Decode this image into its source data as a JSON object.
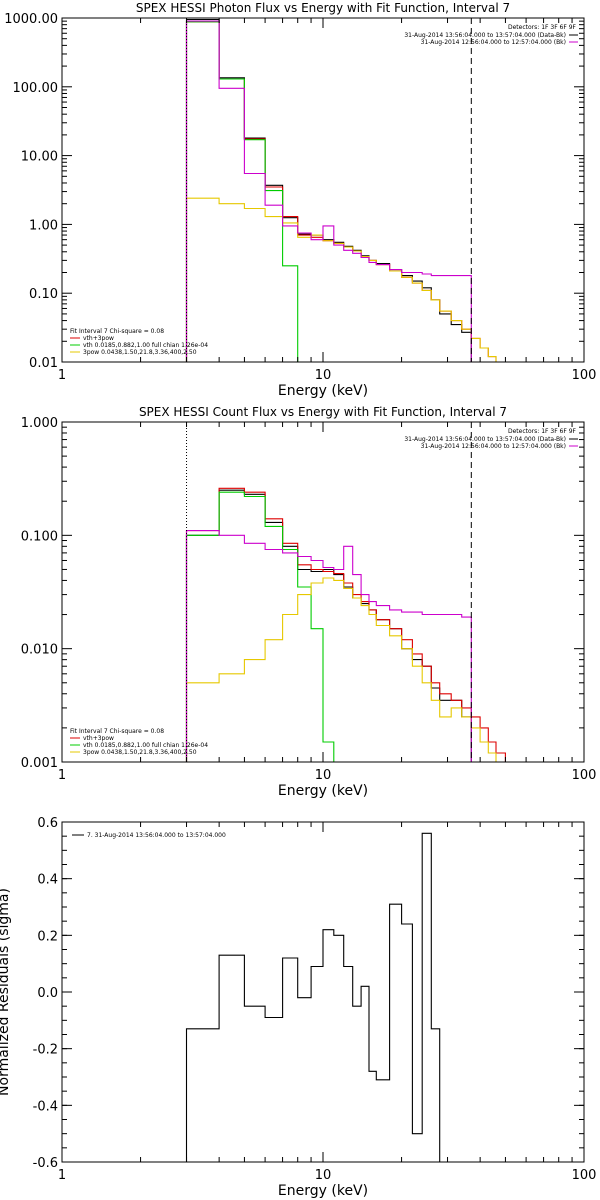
{
  "colors": {
    "data": "#000000",
    "total": "#dd0000",
    "vth": "#00cc00",
    "powerlaw": "#e6c800",
    "background": "#cc00cc",
    "axes": "#000000"
  },
  "chart_data": [
    {
      "type": "line",
      "step": true,
      "title": "SPEX HESSI Photon Flux vs Energy with Fit Function, Interval 7",
      "xlabel": "Energy (keV)",
      "ylabel": "",
      "xscale": "log",
      "yscale": "log",
      "xlim": [
        1,
        100
      ],
      "ylim": [
        0.01,
        1000
      ],
      "x_ticks": [
        {
          "value": 1,
          "label": "1"
        },
        {
          "value": 10,
          "label": "10"
        },
        {
          "value": 100,
          "label": "100"
        }
      ],
      "y_ticks": [
        {
          "value": 1000,
          "label": "1000.00"
        },
        {
          "value": 100,
          "label": "100.00"
        },
        {
          "value": 10,
          "label": "10.00"
        },
        {
          "value": 1,
          "label": "1.00"
        },
        {
          "value": 0.1,
          "label": "0.10"
        },
        {
          "value": 0.01,
          "label": "0.01"
        }
      ],
      "bin_edges": [
        3,
        4,
        5,
        6,
        7,
        8,
        9,
        10,
        11,
        12,
        13,
        14,
        15,
        16,
        18,
        20,
        22,
        24,
        26,
        28,
        31,
        34,
        37,
        40,
        43,
        46,
        50
      ],
      "series": [
        {
          "name": "",
          "color_key": "data",
          "values": [
            950,
            135,
            18,
            3.7,
            1.25,
            0.72,
            0.7,
            0.6,
            0.55,
            0.48,
            0.42,
            0.35,
            0.3,
            0.27,
            0.22,
            0.18,
            0.15,
            0.12,
            0.08,
            0.05,
            0.035,
            0.027,
            null,
            null,
            null,
            null
          ]
        },
        {
          "name": "vth+3pow",
          "color_key": "total",
          "values": [
            880,
            130,
            17.5,
            3.5,
            1.3,
            0.7,
            0.65,
            0.58,
            0.53,
            0.47,
            0.41,
            0.34,
            0.3,
            0.26,
            0.21,
            0.17,
            0.14,
            0.11,
            0.08,
            0.055,
            0.04,
            0.03,
            0.022,
            0.016,
            0.012,
            0.01
          ]
        },
        {
          "name": "vth 0.0185,0.882,1.00  full chian 1.26e-04",
          "color_key": "vth",
          "values": [
            880,
            130,
            17,
            3.1,
            0.25,
            0.009,
            null,
            null,
            null,
            null,
            null,
            null,
            null,
            null,
            null,
            null,
            null,
            null,
            null,
            null,
            null,
            null,
            null,
            null,
            null,
            null
          ]
        },
        {
          "name": "3pow 0.0438,1.50,21.8,3.36,400,2.50",
          "color_key": "powerlaw",
          "values": [
            2.4,
            2.0,
            1.7,
            1.3,
            1.05,
            0.65,
            0.7,
            0.58,
            0.53,
            0.47,
            0.41,
            0.34,
            0.3,
            0.26,
            0.21,
            0.17,
            0.14,
            0.11,
            0.08,
            0.055,
            0.04,
            0.03,
            0.022,
            0.016,
            0.012,
            0.01
          ]
        },
        {
          "name": "",
          "color_key": "background",
          "values": [
            900,
            95,
            5.5,
            1.9,
            0.95,
            0.75,
            0.6,
            0.95,
            0.5,
            0.42,
            0.38,
            0.33,
            0.28,
            0.26,
            0.22,
            0.2,
            0.2,
            0.19,
            0.18,
            0.18,
            0.18,
            0.18,
            null,
            null,
            null,
            null
          ]
        }
      ],
      "legend_title": "Detectors: 1F 3F 6F 9F",
      "legend_entries": [
        {
          "label": "31-Aug-2014 13:56:04.000 to 13:57:04.000 (Data-Bk)",
          "color_key": "data"
        },
        {
          "label": "31-Aug-2014 12:56:04.000 to 12:57:04.000 (Bk)",
          "color_key": "background"
        }
      ],
      "fit_header": "Fit Interval 7   Chi-square = 0.08",
      "fit_legend": [
        {
          "label": "vth+3pow",
          "color_key": "total"
        },
        {
          "label": "vth 0.0185,0.882,1.00  full chian 1.26e-04",
          "color_key": "vth"
        },
        {
          "label": "3pow 0.0438,1.50,21.8,3.36,400,2.50",
          "color_key": "powerlaw"
        }
      ],
      "vlines": [
        {
          "x": 3,
          "style": "dotted"
        },
        {
          "x": 37,
          "style": "dashed"
        }
      ]
    },
    {
      "type": "line",
      "step": true,
      "title": "SPEX HESSI Count Flux vs Energy with Fit Function, Interval 7",
      "xlabel": "Energy (keV)",
      "ylabel": "",
      "xscale": "log",
      "yscale": "log",
      "xlim": [
        1,
        100
      ],
      "ylim": [
        0.001,
        1
      ],
      "x_ticks": [
        {
          "value": 1,
          "label": "1"
        },
        {
          "value": 10,
          "label": "10"
        },
        {
          "value": 100,
          "label": "100"
        }
      ],
      "y_ticks": [
        {
          "value": 1,
          "label": "1.000"
        },
        {
          "value": 0.1,
          "label": "0.100"
        },
        {
          "value": 0.01,
          "label": "0.010"
        },
        {
          "value": 0.001,
          "label": "0.001"
        }
      ],
      "bin_edges": [
        3,
        3.5,
        4,
        4.5,
        5,
        5.5,
        6,
        6.5,
        7,
        7.5,
        8,
        8.5,
        9,
        9.5,
        10,
        11,
        12,
        13,
        14,
        15,
        16,
        18,
        20,
        22,
        24,
        26,
        28,
        31,
        34,
        37,
        40,
        43,
        46,
        50,
        55
      ],
      "series": [
        {
          "name": "",
          "color_key": "data",
          "values": [
            0.1,
            0.1,
            0.25,
            0.25,
            0.23,
            0.23,
            0.13,
            0.13,
            0.08,
            0.08,
            0.05,
            0.05,
            0.048,
            0.048,
            0.05,
            0.045,
            0.035,
            0.028,
            0.025,
            0.022,
            0.018,
            0.015,
            0.01,
            0.008,
            0.007,
            0.0045,
            0.0035,
            0.0035,
            0.0025,
            null,
            null,
            null,
            null,
            null
          ]
        },
        {
          "name": "vth+3pow",
          "color_key": "total",
          "values": [
            0.11,
            0.11,
            0.26,
            0.26,
            0.24,
            0.24,
            0.14,
            0.14,
            0.085,
            0.085,
            0.055,
            0.055,
            0.05,
            0.05,
            0.048,
            0.046,
            0.038,
            0.03,
            0.026,
            0.022,
            0.018,
            0.015,
            0.012,
            0.009,
            0.007,
            0.005,
            0.004,
            0.0035,
            0.003,
            0.0025,
            0.002,
            0.0015,
            0.0012,
            0.001
          ]
        },
        {
          "name": "vth 0.0185,0.882,1.00  full chian 1.26e-04",
          "color_key": "vth",
          "values": [
            0.1,
            0.1,
            0.24,
            0.24,
            0.22,
            0.22,
            0.12,
            0.12,
            0.075,
            0.075,
            0.035,
            0.035,
            0.015,
            0.015,
            0.0015,
            null,
            null,
            null,
            null,
            null,
            null,
            null,
            null,
            null,
            null,
            null,
            null,
            null,
            null,
            null,
            null,
            null,
            null,
            null
          ]
        },
        {
          "name": "3pow 0.0438,1.50,21.8,3.36,400,2.50",
          "color_key": "powerlaw",
          "values": [
            0.005,
            0.005,
            0.006,
            0.006,
            0.008,
            0.008,
            0.012,
            0.012,
            0.02,
            0.02,
            0.03,
            0.03,
            0.038,
            0.038,
            0.042,
            0.04,
            0.034,
            0.028,
            0.024,
            0.02,
            0.016,
            0.013,
            0.01,
            0.007,
            0.005,
            0.0035,
            0.0025,
            0.003,
            0.0025,
            0.002,
            0.0015,
            0.0012,
            0.001,
            0.001
          ]
        },
        {
          "name": "",
          "color_key": "background",
          "values": [
            0.11,
            0.11,
            0.1,
            0.1,
            0.085,
            0.085,
            0.075,
            0.075,
            0.07,
            0.07,
            0.065,
            0.065,
            0.06,
            0.06,
            0.052,
            0.05,
            0.08,
            0.045,
            0.03,
            0.026,
            0.024,
            0.022,
            0.021,
            0.021,
            0.02,
            0.02,
            0.02,
            0.02,
            0.019,
            null,
            null,
            null,
            null,
            null
          ]
        }
      ],
      "legend_title": "Detectors: 1F 3F 6F 9F",
      "legend_entries": [
        {
          "label": "31-Aug-2014 13:56:04.000 to 13:57:04.000 (Data-Bk)",
          "color_key": "data"
        },
        {
          "label": "31-Aug-2014 12:56:04.000 to 12:57:04.000 (Bk)",
          "color_key": "background"
        }
      ],
      "fit_header": "Fit Interval 7   Chi-square = 0.08",
      "fit_legend": [
        {
          "label": "vth+3pow",
          "color_key": "total"
        },
        {
          "label": "vth 0.0185,0.882,1.00  full chian 1.26e-04",
          "color_key": "vth"
        },
        {
          "label": "3pow 0.0438,1.50,21.8,3.36,400,2.50",
          "color_key": "powerlaw"
        }
      ],
      "vlines": [
        {
          "x": 3,
          "style": "dotted"
        },
        {
          "x": 37,
          "style": "dashed"
        }
      ]
    },
    {
      "type": "line",
      "step": true,
      "title": "",
      "xlabel": "Energy (keV)",
      "ylabel": "Normalized Residuals (sigma)",
      "xscale": "log",
      "yscale": "linear",
      "xlim": [
        1,
        100
      ],
      "ylim": [
        -0.6,
        0.6
      ],
      "x_ticks": [
        {
          "value": 1,
          "label": "1"
        },
        {
          "value": 10,
          "label": "10"
        },
        {
          "value": 100,
          "label": "100"
        }
      ],
      "y_ticks": [
        {
          "value": 0.6,
          "label": "0.6"
        },
        {
          "value": 0.4,
          "label": "0.4"
        },
        {
          "value": 0.2,
          "label": "0.2"
        },
        {
          "value": 0.0,
          "label": "0.0"
        },
        {
          "value": -0.2,
          "label": "-0.2"
        },
        {
          "value": -0.4,
          "label": "-0.4"
        },
        {
          "value": -0.6,
          "label": "-0.6"
        }
      ],
      "bin_edges": [
        3,
        4,
        5,
        6,
        7,
        8,
        9,
        10,
        11,
        12,
        13,
        14,
        15,
        16,
        18,
        20,
        22,
        24,
        26,
        28,
        31,
        34,
        37
      ],
      "series": [
        {
          "name": "7. 31-Aug-2014 13:56:04.000 to 13:57:04.000",
          "color_key": "data",
          "values": [
            -0.13,
            0.13,
            -0.05,
            -0.09,
            0.12,
            -0.02,
            0.09,
            0.22,
            0.2,
            0.09,
            -0.05,
            0.02,
            -0.28,
            -0.31,
            0.31,
            0.24,
            -0.5,
            0.56,
            -0.13,
            null,
            null,
            null
          ]
        }
      ],
      "legend_entries": [
        {
          "label": "7. 31-Aug-2014 13:56:04.000 to 13:57:04.000",
          "color_key": "data"
        }
      ],
      "vlines": []
    }
  ]
}
